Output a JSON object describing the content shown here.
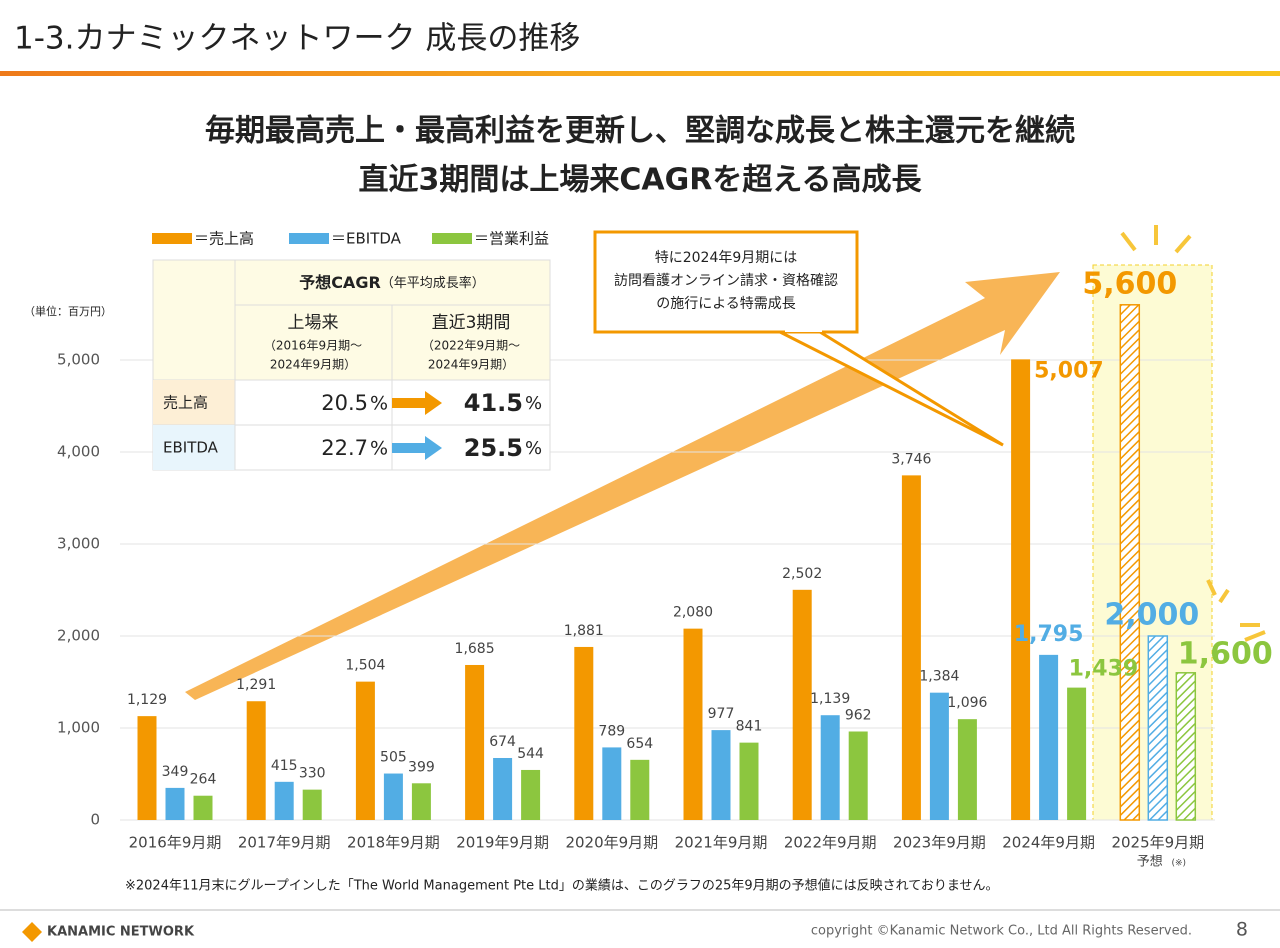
{
  "header": {
    "title": "1-3.カナミックネットワーク 成長の推移"
  },
  "headline": [
    "毎期最高売上・最高利益を更新し、堅調な成長と株主還元を継続",
    "直近3期間は上場来CAGRを超える高成長"
  ],
  "table": {
    "title": "予想CAGR",
    "title_note": "（年平均成長率）",
    "columns": [
      {
        "name": "上場来",
        "period": [
          "（2016年9月期～",
          "2024年9月期）"
        ]
      },
      {
        "name": "直近3期間",
        "period": [
          "（2022年9月期～",
          "2024年9月期）"
        ]
      }
    ],
    "rows": [
      {
        "label": "売上高",
        "cells": [
          {
            "num": "20.5",
            "unit": "%"
          },
          {
            "num": "41.5",
            "unit": "%"
          }
        ]
      },
      {
        "label": "EBITDA",
        "cells": [
          {
            "num": "22.7",
            "unit": "%"
          },
          {
            "num": "25.5",
            "unit": "%"
          }
        ]
      }
    ]
  },
  "callout": [
    "特に2024年9月期には",
    "訪問看護オンライン請求・資格確認",
    "の施行による特需成長"
  ],
  "footnote": "※2024年11月末にグループインした「The World Management Pte Ltd」の業績は、このグラフの25年9月期の予想値には反映されておりません。",
  "footer": {
    "logo": "KANAMIC NETWORK",
    "copyright": "copyright ©Kanamic Network Co., Ltd All Rights Reserved.",
    "page": "8"
  },
  "chart_data": {
    "type": "bar",
    "unit_label": "（単位：百万円）",
    "categories": [
      "2016年9月期",
      "2017年9月期",
      "2018年9月期",
      "2019年9月期",
      "2020年9月期",
      "2021年9月期",
      "2022年9月期",
      "2023年9月期",
      "2024年9月期",
      "2025年9月期"
    ],
    "forecast_label": "予想",
    "forecast_mark": "(※)",
    "series": [
      {
        "name": "＝売上高",
        "color": "#f39800",
        "values": [
          1129,
          1291,
          1504,
          1685,
          1881,
          2080,
          2502,
          3746,
          5007,
          5600
        ],
        "value_labels": [
          "1,129",
          "1,291",
          "1,504",
          "1,685",
          "1,881",
          "2,080",
          "2,502",
          "3,746",
          "5,007",
          "5,600"
        ]
      },
      {
        "name": "＝EBITDA",
        "color": "#52ade4",
        "values": [
          349,
          415,
          505,
          674,
          789,
          977,
          1139,
          1384,
          1795,
          2000
        ],
        "value_labels": [
          "349",
          "415",
          "505",
          "674",
          "789",
          "977",
          "1,139",
          "1,384",
          "1,795",
          "2,000"
        ]
      },
      {
        "name": "＝営業利益",
        "color": "#8cc63f",
        "values": [
          264,
          330,
          399,
          544,
          654,
          841,
          962,
          1096,
          1439,
          1600
        ],
        "value_labels": [
          "264",
          "330",
          "399",
          "544",
          "654",
          "841",
          "962",
          "1,096",
          "1,439",
          "1,600"
        ]
      }
    ],
    "ylim": [
      0,
      6000
    ],
    "yticks": [
      0,
      {
        "value": 1000,
        "label": "1,000"
      },
      {
        "value": 2000,
        "label": "2,000"
      },
      {
        "value": 3000,
        "label": "3,000"
      },
      {
        "value": 4000,
        "label": "4,000"
      },
      {
        "value": 5000,
        "label": "5,000"
      }
    ],
    "grid": true
  }
}
